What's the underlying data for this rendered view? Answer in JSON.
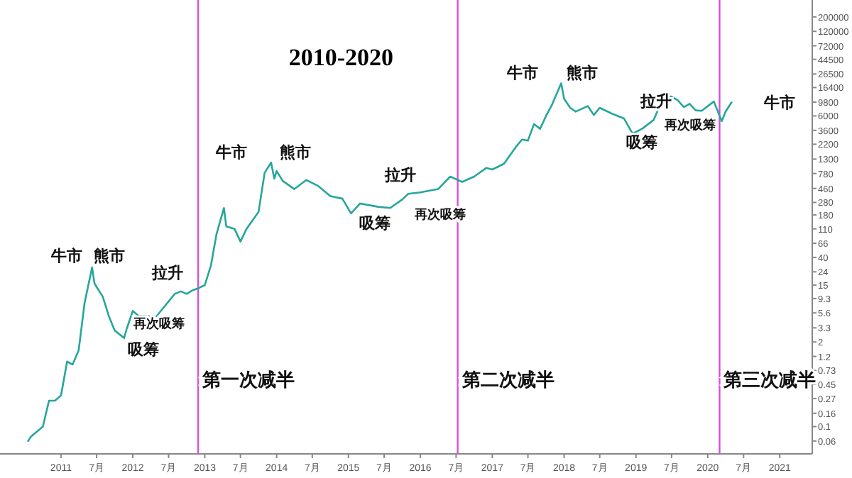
{
  "chart_data": {
    "type": "line",
    "title": "2010-2020",
    "log": "y",
    "xlim": [
      "2010-02-25",
      "2021-06-15"
    ],
    "ylim": [
      0.038,
      364000
    ],
    "xticks": [
      {
        "value": "2011",
        "label": "2011"
      },
      {
        "value": "2011-07",
        "label": "7月"
      },
      {
        "value": "2012",
        "label": "2012"
      },
      {
        "value": "2012-07",
        "label": "7月"
      },
      {
        "value": "2013",
        "label": "2013"
      },
      {
        "value": "2013-07",
        "label": "7月"
      },
      {
        "value": "2014",
        "label": "2014"
      },
      {
        "value": "2014-07",
        "label": "7月"
      },
      {
        "value": "2015",
        "label": "2015"
      },
      {
        "value": "2015-07",
        "label": "7月"
      },
      {
        "value": "2016",
        "label": "2016"
      },
      {
        "value": "2016-07",
        "label": "7月"
      },
      {
        "value": "2017",
        "label": "2017"
      },
      {
        "value": "2017-07",
        "label": "7月"
      },
      {
        "value": "2018",
        "label": "2018"
      },
      {
        "value": "2018-07",
        "label": "7月"
      },
      {
        "value": "2019",
        "label": "2019"
      },
      {
        "value": "2019-07",
        "label": "7月"
      },
      {
        "value": "2020",
        "label": "2020"
      },
      {
        "value": "2020-07",
        "label": "7月"
      },
      {
        "value": "2021",
        "label": "2021"
      }
    ],
    "yticks": [
      0.06,
      0.1,
      0.16,
      0.27,
      0.45,
      0.73,
      1.2,
      2,
      3.3,
      5.6,
      9.3,
      15,
      24,
      40,
      66,
      110,
      180,
      280,
      460,
      780,
      1300,
      2200,
      3600,
      6000,
      9800,
      16400,
      26500,
      44500,
      72000,
      120000,
      200000
    ],
    "grid": false,
    "series": [
      {
        "color": "#26a69a",
        "x": [
          "2010-07-18",
          "2010-08",
          "2010-10",
          "2010-11",
          "2010-12",
          "2011-01",
          "2011-02",
          "2011-03",
          "2011-04",
          "2011-05",
          "2011-06-08",
          "2011-06-20",
          "2011-07",
          "2011-08",
          "2011-09",
          "2011-10",
          "2011-11-18",
          "2011-12",
          "2012-01",
          "2012-02",
          "2012-03",
          "2012-05",
          "2012-06",
          "2012-08",
          "2012-09",
          "2012-10",
          "2012-11",
          "2012-12",
          "2013-01",
          "2013-02",
          "2013-03",
          "2013-04-08",
          "2013-04-20",
          "2013-06",
          "2013-07",
          "2013-08",
          "2013-10",
          "2013-11",
          "2013-12-04",
          "2013-12-20",
          "2014-01",
          "2014-02",
          "2014-04",
          "2014-06",
          "2014-08",
          "2014-10",
          "2014-12",
          "2015-01-14",
          "2015-03",
          "2015-06",
          "2015-08",
          "2015-10",
          "2015-11",
          "2016-01",
          "2016-04",
          "2016-06",
          "2016-08",
          "2016-10",
          "2016-12",
          "2017-01",
          "2017-03",
          "2017-05",
          "2017-06",
          "2017-07",
          "2017-08",
          "2017-09",
          "2017-10",
          "2017-11",
          "2017-12-17",
          "2018-01",
          "2018-02",
          "2018-03",
          "2018-05",
          "2018-06",
          "2018-07",
          "2018-09",
          "2018-11",
          "2018-12-15",
          "2019-02",
          "2019-04",
          "2019-05",
          "2019-06-26",
          "2019-08",
          "2019-09",
          "2019-10",
          "2019-11",
          "2019-12",
          "2020-02",
          "2020-03-12",
          "2020-04",
          "2020-05"
        ],
        "values": [
          0.06,
          0.07,
          0.1,
          0.25,
          0.25,
          0.3,
          1,
          0.9,
          1.5,
          8,
          28,
          16,
          14,
          10,
          5,
          3,
          2.3,
          3.2,
          6,
          5,
          5,
          5,
          6.5,
          11,
          12,
          11,
          12.5,
          13.5,
          15,
          30,
          90,
          230,
          120,
          110,
          70,
          110,
          200,
          800,
          1150,
          650,
          850,
          600,
          450,
          620,
          500,
          350,
          320,
          190,
          270,
          240,
          230,
          310,
          380,
          400,
          450,
          700,
          580,
          700,
          950,
          900,
          1100,
          2000,
          2600,
          2500,
          4500,
          3800,
          6000,
          9000,
          19000,
          11000,
          8000,
          7000,
          8500,
          6200,
          8000,
          6500,
          5500,
          3200,
          3800,
          5200,
          8500,
          12000,
          10500,
          8200,
          9200,
          7300,
          7200,
          10000,
          5000,
          7000,
          9700
        ]
      }
    ],
    "ref_lines": [
      {
        "axis": "x",
        "value": "2012-11-28",
        "color": "#d64fd6",
        "line_style": "solid",
        "label": "第一次减半"
      },
      {
        "axis": "x",
        "value": "2016-07-09",
        "color": "#d64fd6",
        "line_style": "solid",
        "label": "第二次减半"
      },
      {
        "axis": "x",
        "value": "2020-03-01",
        "color": "#d64fd6",
        "line_style": "solid",
        "label": "第三次减半"
      }
    ],
    "annotations": [
      "牛市",
      "熊市",
      "拉升",
      "吸筹",
      "再次吸筹",
      "牛市",
      "熊市",
      "拉升",
      "吸筹",
      "再次吸筹",
      "牛市",
      "熊市",
      "拉升",
      "吸筹",
      "再次吸筹",
      "牛市"
    ]
  }
}
